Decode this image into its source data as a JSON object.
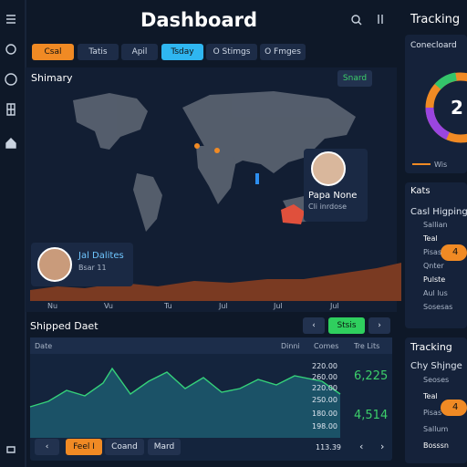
{
  "header": {
    "title": "Dashboard"
  },
  "tabs": [
    "Csal",
    "Tatis",
    "Apil",
    "Tsday",
    "O Stimgs",
    "O Fmges"
  ],
  "summary": {
    "title": "Shimary",
    "action": "Snard",
    "profiles": [
      {
        "name": "Papa None",
        "detail": "Cli inrdose"
      },
      {
        "name": "Jal Dalites",
        "detail": "Bsar 11"
      }
    ],
    "axis_labels": [
      "Nu",
      "Vu",
      "Tu",
      "Jul",
      "Jul",
      "Jul"
    ]
  },
  "shipped": {
    "title": "Shipped Daet",
    "action": "Stsis",
    "columns": [
      "Date",
      "Dinni",
      "Comes",
      "Tre Lits"
    ],
    "values": [
      "220.00",
      "260.00",
      "220.00",
      "2S0.00",
      "180.00",
      "198.00"
    ],
    "highlights": [
      "6,225",
      "4,514"
    ],
    "total": "113.39",
    "buttons": [
      "Feel I",
      "Coand",
      "Mard"
    ]
  },
  "sidebar": {
    "tracking": "Tracking",
    "card_title": "Conecloard",
    "ring_value": "2",
    "ring_label": "Wis",
    "kats": "Kats",
    "kats_subtitle": "Casl Higping",
    "kats_items": [
      "Sallian",
      "Teal",
      "Pisas",
      "Qnter",
      "Pulste",
      "Aul lus",
      "Sosesas"
    ],
    "kats_badge": "4",
    "tracking2": "Tracking",
    "tracking2_subtitle": "Chy Shjnge",
    "tracking2_items": [
      "Seoses",
      "Teal",
      "Pisas",
      "Sallum",
      "Bosssn"
    ],
    "tracking2_badge": "4"
  }
}
